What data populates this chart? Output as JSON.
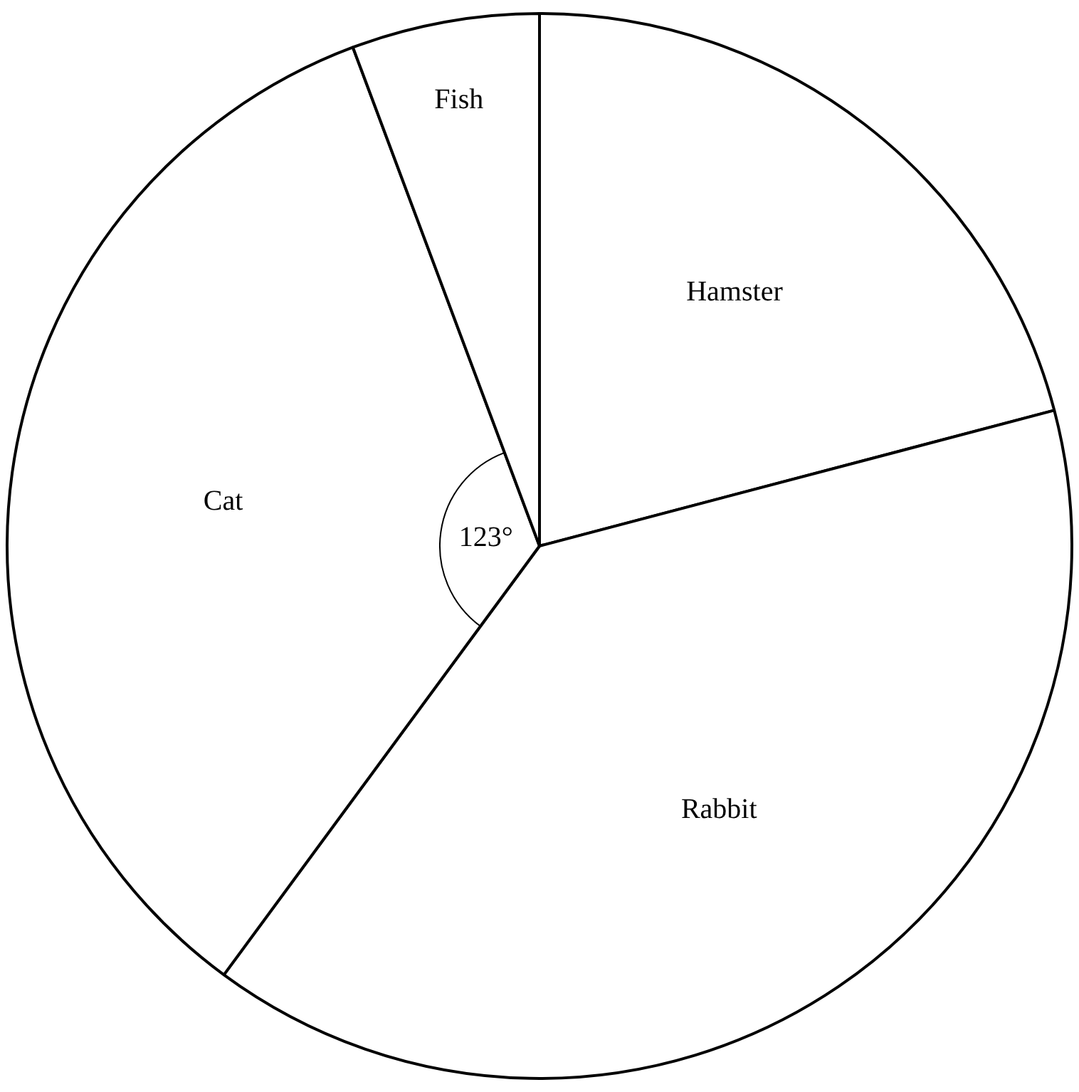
{
  "chart_data": {
    "type": "pie",
    "categories": [
      "Hamster",
      "Rabbit",
      "Cat",
      "Fish"
    ],
    "values": [
      20.9,
      39.2,
      34.2,
      5.7
    ],
    "colors": [
      "#ffffff",
      "#ffffff",
      "#ffffff",
      "#ffffff"
    ],
    "annotations": [
      {
        "text": "123°",
        "x": "Cat"
      }
    ],
    "legend": false
  }
}
